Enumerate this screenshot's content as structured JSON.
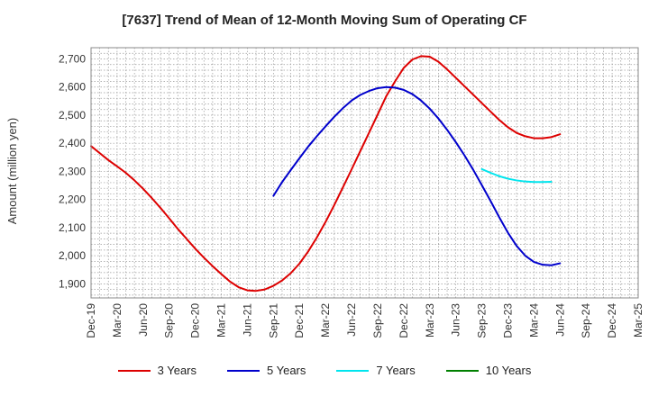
{
  "chart_data": {
    "type": "line",
    "title": "[7637]  Trend of Mean of 12-Month Moving Sum of Operating CF",
    "xlabel": "",
    "ylabel": "Amount (million yen)",
    "ylim": [
      1850,
      2740
    ],
    "yticks": [
      1900,
      2000,
      2100,
      2200,
      2300,
      2400,
      2500,
      2600,
      2700
    ],
    "ytick_labels": [
      "1,900",
      "2,000",
      "2,100",
      "2,200",
      "2,300",
      "2,400",
      "2,500",
      "2,600",
      "2,700"
    ],
    "xtick_labels": [
      "Dec-19",
      "Mar-20",
      "Jun-20",
      "Sep-20",
      "Dec-20",
      "Mar-21",
      "Jun-21",
      "Sep-21",
      "Dec-21",
      "Mar-22",
      "Jun-22",
      "Sep-22",
      "Dec-22",
      "Mar-23",
      "Jun-23",
      "Sep-23",
      "Dec-23",
      "Mar-24",
      "Jun-24",
      "Sep-24",
      "Dec-24",
      "Mar-25"
    ],
    "grid": true,
    "legend_position": "bottom",
    "series": [
      {
        "name": "3 Years",
        "color": "#dd0000",
        "start_month_index": 0,
        "values": [
          2390,
          2365,
          2340,
          2318,
          2295,
          2268,
          2238,
          2205,
          2170,
          2133,
          2095,
          2060,
          2025,
          1993,
          1963,
          1935,
          1908,
          1888,
          1877,
          1875,
          1880,
          1893,
          1912,
          1938,
          1972,
          2015,
          2065,
          2120,
          2180,
          2243,
          2307,
          2372,
          2437,
          2502,
          2568,
          2620,
          2668,
          2698,
          2710,
          2708,
          2690,
          2663,
          2633,
          2603,
          2573,
          2543,
          2513,
          2483,
          2457,
          2437,
          2425,
          2418,
          2418,
          2422,
          2432
        ]
      },
      {
        "name": "5 Years",
        "color": "#0000cc",
        "start_month_index": 21,
        "values": [
          2213,
          2262,
          2305,
          2347,
          2388,
          2425,
          2460,
          2494,
          2525,
          2552,
          2572,
          2586,
          2596,
          2600,
          2598,
          2590,
          2575,
          2552,
          2523,
          2488,
          2448,
          2404,
          2357,
          2306,
          2251,
          2195,
          2137,
          2082,
          2035,
          2000,
          1978,
          1968,
          1966,
          1973
        ]
      },
      {
        "name": "7 Years",
        "color": "#00e5ee",
        "start_month_index": 45,
        "values": [
          2308,
          2295,
          2283,
          2274,
          2268,
          2264,
          2262,
          2262,
          2263
        ]
      },
      {
        "name": "10 Years",
        "color": "#008000",
        "start_month_index": 0,
        "values": []
      }
    ]
  }
}
